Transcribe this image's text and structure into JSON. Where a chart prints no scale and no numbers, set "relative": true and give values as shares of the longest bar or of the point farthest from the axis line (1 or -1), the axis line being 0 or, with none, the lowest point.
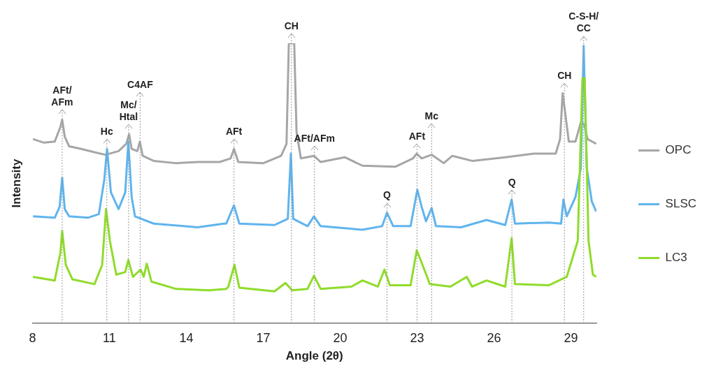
{
  "chart_data": {
    "type": "line",
    "relative": true,
    "xlabel": "Angle (2θ)",
    "ylabel": "Intensity",
    "xlim": [
      8,
      30
    ],
    "xticks": [
      8,
      11,
      14,
      17,
      20,
      23,
      26,
      29
    ],
    "legend": "right",
    "grid": false,
    "marker": "none",
    "line_style": "solid",
    "series": [
      {
        "name": "OPC",
        "color": "#a6a6a6",
        "x": [
          8.02,
          8.45,
          8.87,
          9.09,
          9.16,
          9.26,
          9.43,
          9.9,
          10.42,
          10.85,
          11.36,
          11.66,
          11.77,
          11.87,
          12.09,
          12.19,
          12.3,
          12.73,
          13.59,
          14.44,
          15.3,
          15.73,
          15.86,
          16.03,
          17.01,
          17.7,
          17.91,
          18.0,
          18.21,
          18.3,
          18.47,
          18.98,
          19.24,
          20.18,
          20.87,
          22.15,
          22.84,
          22.99,
          23.18,
          23.57,
          24.04,
          24.38,
          25.15,
          26.44,
          27.55,
          28.41,
          28.58,
          28.68,
          28.79,
          28.92,
          29.18,
          29.39,
          29.52,
          29.65,
          29.99
        ],
        "values": [
          0.658,
          0.645,
          0.649,
          0.701,
          0.727,
          0.667,
          0.632,
          0.623,
          0.611,
          0.602,
          0.615,
          0.641,
          0.675,
          0.623,
          0.615,
          0.649,
          0.598,
          0.58,
          0.572,
          0.576,
          0.576,
          0.589,
          0.623,
          0.576,
          0.572,
          0.598,
          0.641,
          1.0,
          1.0,
          0.684,
          0.589,
          0.598,
          0.576,
          0.593,
          0.563,
          0.559,
          0.589,
          0.606,
          0.589,
          0.602,
          0.572,
          0.598,
          0.58,
          0.593,
          0.606,
          0.606,
          0.658,
          0.822,
          0.744,
          0.649,
          0.649,
          0.718,
          0.71,
          0.658,
          0.641
        ]
      },
      {
        "name": "SLSC",
        "color": "#5fb4ee",
        "x": [
          8.02,
          8.87,
          9.06,
          9.16,
          9.26,
          9.43,
          10.16,
          10.59,
          10.8,
          10.91,
          11.06,
          11.36,
          11.62,
          11.74,
          11.87,
          12.0,
          12.73,
          14.44,
          15.47,
          15.56,
          15.86,
          16.07,
          17.44,
          17.96,
          18.08,
          18.17,
          18.73,
          18.98,
          19.24,
          20.87,
          21.64,
          21.83,
          22.07,
          22.75,
          23.01,
          23.18,
          23.35,
          23.57,
          23.74,
          24.72,
          25.71,
          26.44,
          26.69,
          26.82,
          28.15,
          28.62,
          28.71,
          28.84,
          29.18,
          29.39,
          29.5,
          29.62,
          29.82,
          29.99
        ],
        "values": [
          0.382,
          0.377,
          0.416,
          0.52,
          0.408,
          0.382,
          0.377,
          0.39,
          0.511,
          0.623,
          0.468,
          0.408,
          0.468,
          0.649,
          0.451,
          0.382,
          0.356,
          0.343,
          0.356,
          0.356,
          0.421,
          0.356,
          0.351,
          0.373,
          0.606,
          0.373,
          0.347,
          0.382,
          0.347,
          0.334,
          0.347,
          0.395,
          0.347,
          0.347,
          0.477,
          0.416,
          0.364,
          0.412,
          0.347,
          0.343,
          0.369,
          0.351,
          0.442,
          0.356,
          0.36,
          0.356,
          0.442,
          0.382,
          0.451,
          0.554,
          0.991,
          0.554,
          0.434,
          0.399
        ]
      },
      {
        "name": "LC3",
        "color": "#8fdc2a",
        "x": [
          8.02,
          8.87,
          9.09,
          9.16,
          9.3,
          9.56,
          10.42,
          10.72,
          10.87,
          11.02,
          11.27,
          11.62,
          11.74,
          11.92,
          12.22,
          12.34,
          12.46,
          12.64,
          13.59,
          14.87,
          15.56,
          15.64,
          15.88,
          16.07,
          17.44,
          17.87,
          18.13,
          18.73,
          18.98,
          19.24,
          20.44,
          20.87,
          21.47,
          21.73,
          21.94,
          22.75,
          22.99,
          23.36,
          23.5,
          24.3,
          24.94,
          25.15,
          25.71,
          26.44,
          26.69,
          26.82,
          28.15,
          28.84,
          29.27,
          29.45,
          29.54,
          29.69,
          29.86,
          29.99
        ],
        "values": [
          0.166,
          0.153,
          0.252,
          0.33,
          0.209,
          0.157,
          0.14,
          0.209,
          0.408,
          0.295,
          0.174,
          0.183,
          0.226,
          0.166,
          0.192,
          0.166,
          0.213,
          0.149,
          0.123,
          0.118,
          0.123,
          0.131,
          0.209,
          0.127,
          0.114,
          0.144,
          0.118,
          0.123,
          0.17,
          0.123,
          0.131,
          0.153,
          0.131,
          0.192,
          0.136,
          0.136,
          0.261,
          0.174,
          0.14,
          0.131,
          0.166,
          0.131,
          0.153,
          0.131,
          0.304,
          0.14,
          0.136,
          0.166,
          0.295,
          0.874,
          0.874,
          0.295,
          0.174,
          0.166
        ]
      }
    ],
    "ref_lines": [
      {
        "axis": "x",
        "value": 9.16,
        "label": "AFt/\nAFm"
      },
      {
        "axis": "x",
        "value": 10.9,
        "label": "Hc"
      },
      {
        "axis": "x",
        "value": 11.75,
        "label": "Mc/\nHtal"
      },
      {
        "axis": "x",
        "value": 12.2,
        "label": "C4AF"
      },
      {
        "axis": "x",
        "value": 15.86,
        "label": "AFt"
      },
      {
        "axis": "x",
        "value": 18.1,
        "label": "CH"
      },
      {
        "axis": "x",
        "value": 19.0,
        "label": "AFt/AFm"
      },
      {
        "axis": "x",
        "value": 21.83,
        "label": "Q"
      },
      {
        "axis": "x",
        "value": 23.0,
        "label": "AFt"
      },
      {
        "axis": "x",
        "value": 23.57,
        "label": "Mc"
      },
      {
        "axis": "x",
        "value": 26.7,
        "label": "Q"
      },
      {
        "axis": "x",
        "value": 28.75,
        "label": "CH"
      },
      {
        "axis": "x",
        "value": 29.5,
        "label": "C-S-H/\nCC"
      }
    ]
  }
}
